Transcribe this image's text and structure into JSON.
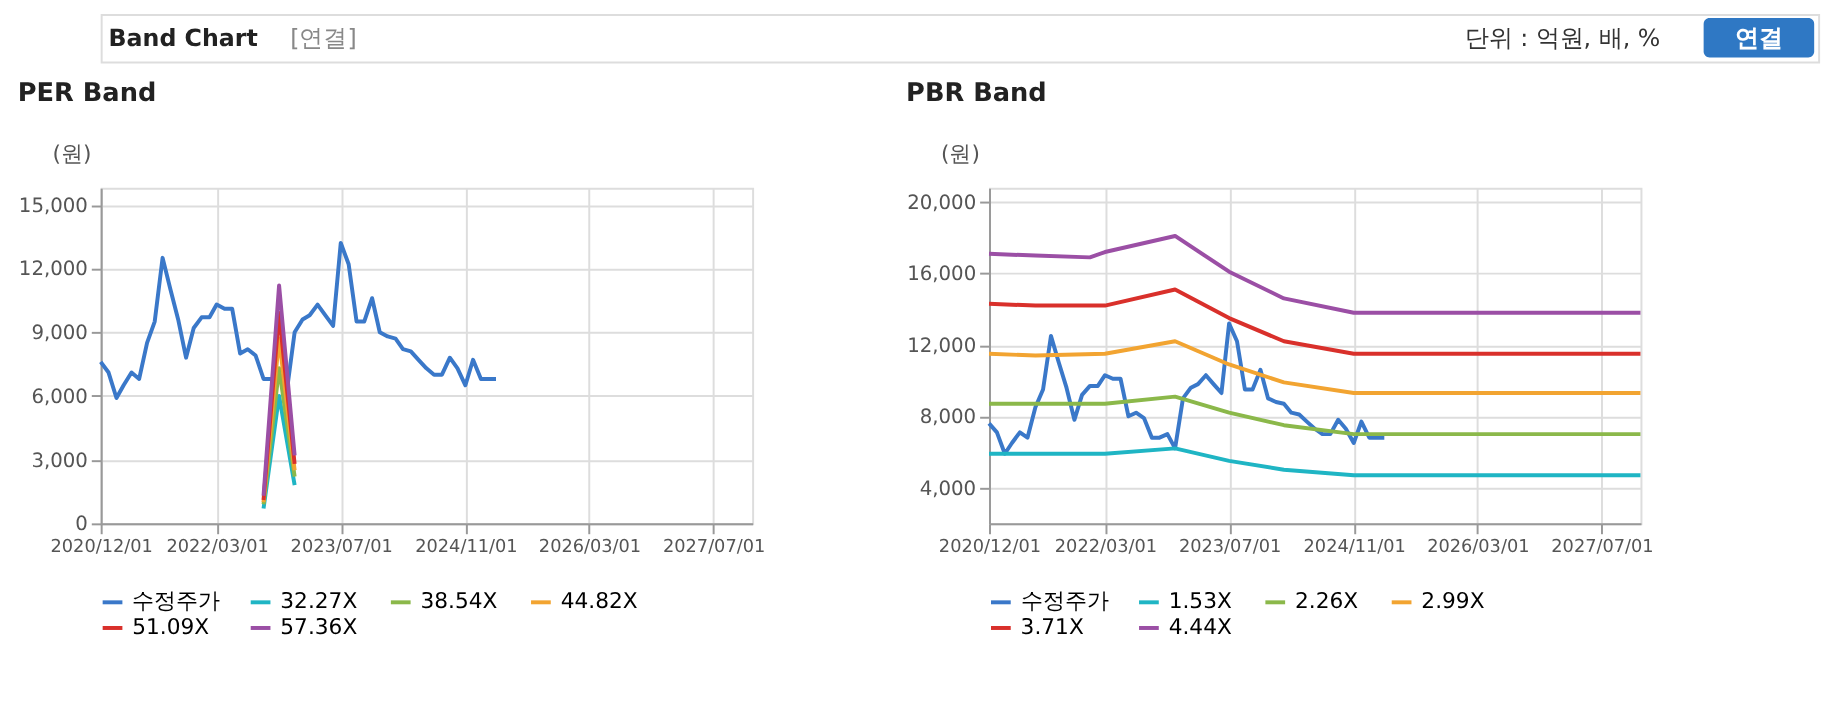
{
  "chart_data": [
    {
      "type": "line",
      "title": "PER Band",
      "annotations": [
        "Band Chart",
        "[연결]",
        "단위 : 억원, 배, %",
        "연결"
      ],
      "ylabel": "(원)",
      "legend": "bottom",
      "grid": true,
      "marker": "none",
      "line_style": "solid",
      "xlim": [
        "2020-12-01",
        "2027-12-01"
      ],
      "ylim": [
        0,
        15800
      ],
      "yticks": [
        0,
        {
          "value": 3000,
          "label": "3,000"
        },
        {
          "value": 6000,
          "label": "6,000"
        },
        {
          "value": 9000,
          "label": "9,000"
        },
        {
          "value": 12000,
          "label": "12,000"
        },
        {
          "value": 15000,
          "label": "15,000"
        }
      ],
      "xticks": [
        {
          "value": "2020-12-01",
          "label": "2020/12/01"
        },
        {
          "value": "2022-03-01",
          "label": "2022/03/01"
        },
        {
          "value": "2023-07-01",
          "label": "2023/07/01"
        },
        {
          "value": "2024-11-01",
          "label": "2024/11/01"
        },
        {
          "value": "2026-03-01",
          "label": "2026/03/01"
        },
        {
          "value": "2027-07-01",
          "label": "2027/07/01"
        }
      ],
      "series": [
        {
          "name": "수정주가",
          "color": "#3a78c9",
          "x": [
            "2020-12-01",
            "2021-01-01",
            "2021-02-01",
            "2021-03-01",
            "2021-04-01",
            "2021-05-01",
            "2021-06-01",
            "2021-07-01",
            "2021-08-01",
            "2021-09-01",
            "2021-10-01",
            "2021-11-01",
            "2021-12-01",
            "2022-01-01",
            "2022-02-01",
            "2022-03-01",
            "2022-04-01",
            "2022-05-01",
            "2022-06-01",
            "2022-07-01",
            "2022-08-01",
            "2022-09-01",
            "2022-10-01",
            "2022-11-01",
            "2022-12-01",
            "2023-01-01",
            "2023-02-01",
            "2023-03-01",
            "2023-04-01",
            "2023-05-01",
            "2023-06-01",
            "2023-07-01",
            "2023-08-01",
            "2023-09-01",
            "2023-10-01",
            "2023-11-01",
            "2023-12-01",
            "2024-01-01",
            "2024-02-01",
            "2024-03-01",
            "2024-04-01",
            "2024-05-01",
            "2024-06-01",
            "2024-07-01",
            "2024-08-01",
            "2024-09-01",
            "2024-10-01",
            "2024-11-01",
            "2024-12-01",
            "2025-01-01",
            "2025-02-01",
            "2025-03-01"
          ],
          "values": [
            7600,
            7100,
            5900,
            6500,
            7100,
            6800,
            8500,
            9500,
            12500,
            11000,
            9600,
            7800,
            9200,
            9700,
            9700,
            10300,
            10100,
            10100,
            8000,
            8200,
            7900,
            6800,
            6800,
            7000,
            6200,
            9000,
            9600,
            9800,
            10300,
            9800,
            9300,
            13200,
            12200,
            9500,
            9500,
            10600,
            9000,
            8800,
            8700,
            8200,
            8100,
            7700,
            7300,
            7000,
            7000,
            7800,
            7300,
            6500,
            7700,
            6800,
            6800,
            6800
          ]
        },
        {
          "name": "32.27X",
          "color": "#1fb5c4",
          "x": [
            "2022-09-01",
            "2022-11-01",
            "2023-01-01"
          ],
          "values": [
            700,
            6000,
            1800
          ]
        },
        {
          "name": "38.54X",
          "color": "#8bb84a",
          "x": [
            "2022-09-01",
            "2022-11-01",
            "2023-01-01"
          ],
          "values": [
            900,
            7300,
            2200
          ]
        },
        {
          "name": "44.82X",
          "color": "#f2a431",
          "x": [
            "2022-09-01",
            "2022-11-01",
            "2023-01-01"
          ],
          "values": [
            1000,
            8700,
            2500
          ]
        },
        {
          "name": "51.09X",
          "color": "#d9302b",
          "x": [
            "2022-09-01",
            "2022-11-01",
            "2023-01-01"
          ],
          "values": [
            1100,
            9900,
            2800
          ]
        },
        {
          "name": "57.36X",
          "color": "#9b4fa5",
          "x": [
            "2022-09-01",
            "2022-11-01",
            "2023-01-01"
          ],
          "values": [
            1300,
            11200,
            3200
          ]
        }
      ]
    },
    {
      "type": "line",
      "title": "PBR Band",
      "ylabel": "(원)",
      "legend": "bottom",
      "grid": true,
      "marker": "none",
      "line_style": "solid",
      "xlim": [
        "2020-12-01",
        "2027-12-01"
      ],
      "ylim": [
        2000,
        20800
      ],
      "yticks": [
        {
          "value": 4000,
          "label": "4,000"
        },
        {
          "value": 8000,
          "label": "8,000"
        },
        {
          "value": 12000,
          "label": "12,000"
        },
        {
          "value": 16000,
          "label": "16,000"
        },
        {
          "value": 20000,
          "label": "20,000"
        }
      ],
      "xticks": [
        {
          "value": "2020-12-01",
          "label": "2020/12/01"
        },
        {
          "value": "2022-03-01",
          "label": "2022/03/01"
        },
        {
          "value": "2023-07-01",
          "label": "2023/07/01"
        },
        {
          "value": "2024-11-01",
          "label": "2024/11/01"
        },
        {
          "value": "2026-03-01",
          "label": "2026/03/01"
        },
        {
          "value": "2027-07-01",
          "label": "2027/07/01"
        }
      ],
      "series": [
        {
          "name": "수정주가",
          "color": "#3a78c9",
          "x": [
            "2020-12-01",
            "2021-01-01",
            "2021-02-01",
            "2021-03-01",
            "2021-04-01",
            "2021-05-01",
            "2021-06-01",
            "2021-07-01",
            "2021-08-01",
            "2021-09-01",
            "2021-10-01",
            "2021-11-01",
            "2021-12-01",
            "2022-01-01",
            "2022-02-01",
            "2022-03-01",
            "2022-04-01",
            "2022-05-01",
            "2022-06-01",
            "2022-07-01",
            "2022-08-01",
            "2022-09-01",
            "2022-10-01",
            "2022-11-01",
            "2022-12-01",
            "2023-01-01",
            "2023-02-01",
            "2023-03-01",
            "2023-04-01",
            "2023-05-01",
            "2023-06-01",
            "2023-07-01",
            "2023-08-01",
            "2023-09-01",
            "2023-10-01",
            "2023-11-01",
            "2023-12-01",
            "2024-01-01",
            "2024-02-01",
            "2024-03-01",
            "2024-04-01",
            "2024-05-01",
            "2024-06-01",
            "2024-07-01",
            "2024-08-01",
            "2024-09-01",
            "2024-10-01",
            "2024-11-01",
            "2024-12-01",
            "2025-01-01",
            "2025-02-01",
            "2025-03-01"
          ],
          "values": [
            7600,
            7100,
            5900,
            6500,
            7100,
            6800,
            8500,
            9500,
            12500,
            11000,
            9600,
            7800,
            9200,
            9700,
            9700,
            10300,
            10100,
            10100,
            8000,
            8200,
            7900,
            6800,
            6800,
            7000,
            6200,
            9000,
            9600,
            9800,
            10300,
            9800,
            9300,
            13200,
            12200,
            9500,
            9500,
            10600,
            9000,
            8800,
            8700,
            8200,
            8100,
            7700,
            7300,
            7000,
            7000,
            7800,
            7300,
            6500,
            7700,
            6800,
            6800,
            6800
          ]
        },
        {
          "name": "1.53X",
          "color": "#1fb5c4",
          "x": [
            "2020-12-01",
            "2021-06-01",
            "2022-03-01",
            "2022-12-01",
            "2023-07-01",
            "2024-02-01",
            "2024-11-01",
            "2027-12-01"
          ],
          "values": [
            5900,
            5900,
            5900,
            6200,
            5500,
            5000,
            4700,
            4700
          ]
        },
        {
          "name": "2.26X",
          "color": "#8bb84a",
          "x": [
            "2020-12-01",
            "2021-06-01",
            "2022-03-01",
            "2022-12-01",
            "2023-07-01",
            "2024-02-01",
            "2024-11-01",
            "2027-12-01"
          ],
          "values": [
            8700,
            8700,
            8700,
            9100,
            8200,
            7500,
            7000,
            7000
          ]
        },
        {
          "name": "2.99X",
          "color": "#f2a431",
          "x": [
            "2020-12-01",
            "2021-06-01",
            "2022-03-01",
            "2022-12-01",
            "2023-07-01",
            "2024-02-01",
            "2024-11-01",
            "2027-12-01"
          ],
          "values": [
            11500,
            11400,
            11500,
            12200,
            10900,
            9900,
            9300,
            9300
          ]
        },
        {
          "name": "3.71X",
          "color": "#d9302b",
          "x": [
            "2020-12-01",
            "2021-06-01",
            "2022-03-01",
            "2022-12-01",
            "2023-07-01",
            "2024-02-01",
            "2024-11-01",
            "2027-12-01"
          ],
          "values": [
            14300,
            14200,
            14200,
            15100,
            13500,
            12200,
            11500,
            11500
          ]
        },
        {
          "name": "4.44X",
          "color": "#9b4fa5",
          "x": [
            "2020-12-01",
            "2021-06-01",
            "2022-01-01",
            "2022-03-01",
            "2022-12-01",
            "2023-07-01",
            "2024-02-01",
            "2024-11-01",
            "2027-12-01"
          ],
          "values": [
            17100,
            17000,
            16900,
            17200,
            18100,
            16100,
            14600,
            13800,
            13800
          ]
        }
      ]
    }
  ]
}
